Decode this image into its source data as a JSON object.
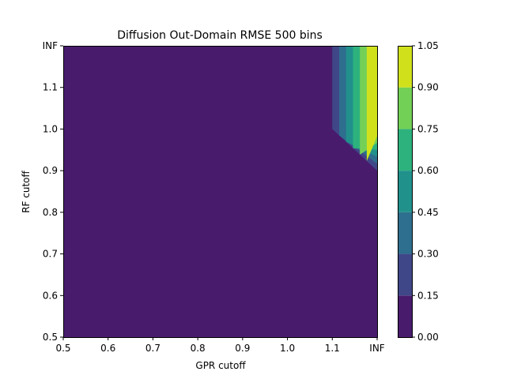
{
  "chart_data": {
    "type": "heatmap",
    "subtype": "filled-contour",
    "title": "Diffusion Out-Domain RMSE 500 bins",
    "xlabel": "GPR cutoff",
    "ylabel": "RF cutoff",
    "x_ticks": [
      "0.5",
      "0.6",
      "0.7",
      "0.8",
      "0.9",
      "1.0",
      "1.1",
      "INF"
    ],
    "y_ticks": [
      "0.5",
      "0.6",
      "0.7",
      "0.8",
      "0.9",
      "1.0",
      "1.1",
      "INF"
    ],
    "x_values": [
      0.5,
      0.6,
      0.7,
      0.8,
      0.9,
      1.0,
      1.1,
      1.2
    ],
    "y_values": [
      0.5,
      0.6,
      0.7,
      0.8,
      0.9,
      1.0,
      1.1,
      1.2
    ],
    "colorbar": {
      "levels": [
        0.0,
        0.15,
        0.3,
        0.45,
        0.6,
        0.75,
        0.9,
        1.05
      ],
      "tick_labels": [
        "0.00",
        "0.15",
        "0.30",
        "0.45",
        "0.60",
        "0.75",
        "0.90",
        "1.05"
      ],
      "colors": [
        "#481b6d",
        "#3f4788",
        "#2e6e8e",
        "#21918c",
        "#2db27d",
        "#73d056",
        "#d0e11c"
      ]
    },
    "contour_regions": [
      {
        "level_index": 1,
        "points": [
          [
            1.1,
            1.2
          ],
          [
            1.2,
            1.2
          ],
          [
            1.2,
            0.9
          ],
          [
            1.1,
            1.0
          ]
        ]
      },
      {
        "level_index": 2,
        "points": [
          [
            1.1154,
            1.2
          ],
          [
            1.2,
            1.2
          ],
          [
            1.2,
            0.9167
          ],
          [
            1.1154,
            0.9846
          ]
        ]
      },
      {
        "level_index": 3,
        "points": [
          [
            1.1308,
            1.2
          ],
          [
            1.2,
            1.2
          ],
          [
            1.2,
            0.9333
          ],
          [
            1.1308,
            0.9692
          ]
        ]
      },
      {
        "level_index": 4,
        "points": [
          [
            1.1462,
            1.2
          ],
          [
            1.2,
            1.2
          ],
          [
            1.2,
            0.95
          ],
          [
            1.1462,
            0.9538
          ]
        ]
      },
      {
        "level_index": 5,
        "points": [
          [
            1.1615,
            1.2
          ],
          [
            1.2,
            1.2
          ],
          [
            1.2,
            0.9667
          ],
          [
            1.1615,
            0.9385
          ]
        ]
      },
      {
        "level_index": 6,
        "points": [
          [
            1.1769,
            1.2
          ],
          [
            1.2,
            1.2
          ],
          [
            1.2,
            0.9833
          ],
          [
            1.1769,
            0.9231
          ]
        ]
      }
    ]
  }
}
